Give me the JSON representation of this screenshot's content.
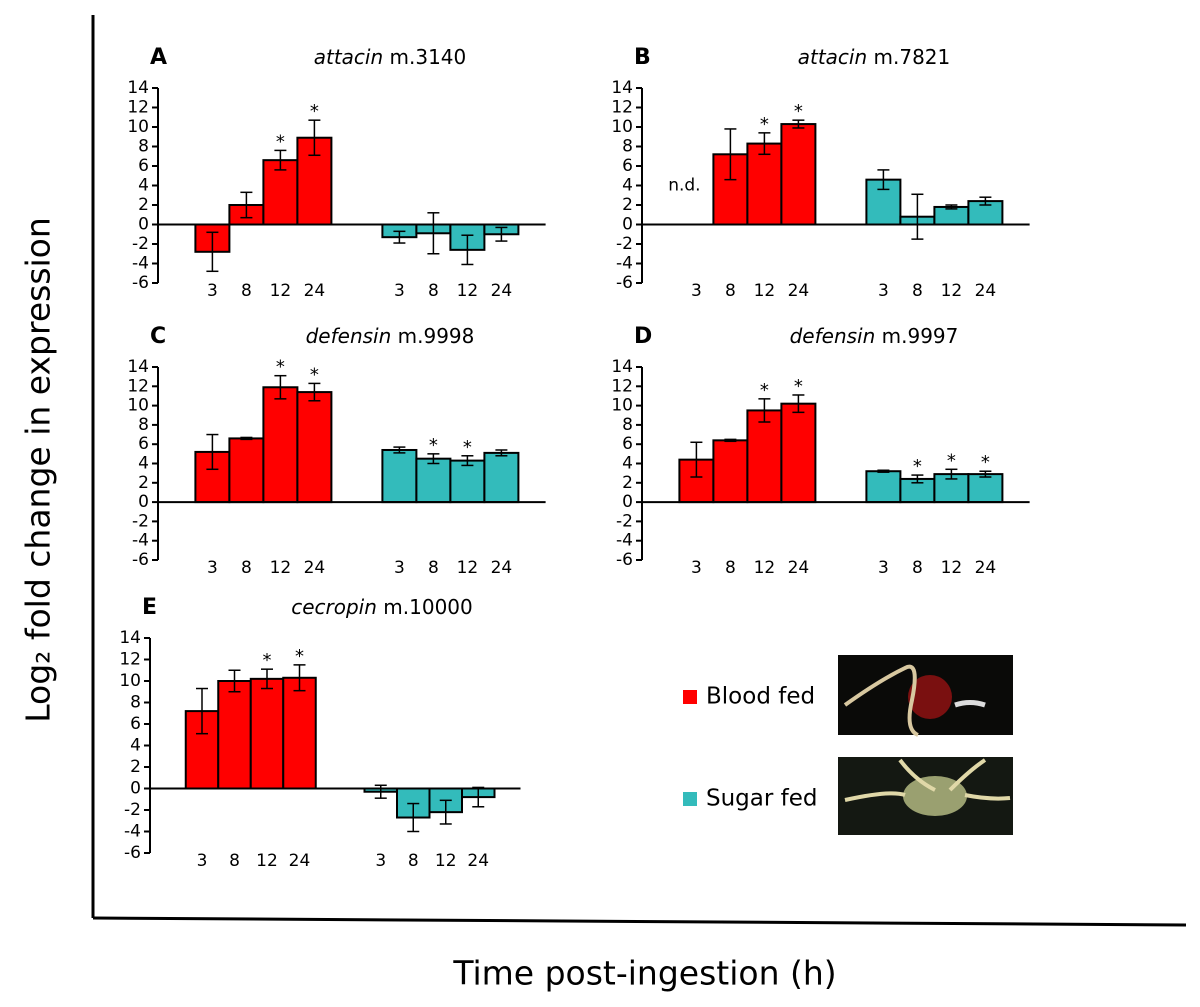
{
  "chart_data": [
    {
      "type": "bar",
      "panel": "A",
      "gene": "attacin",
      "model": "m.3140",
      "categories": [
        "3",
        "8",
        "12",
        "24"
      ],
      "ylim": [
        -6,
        14
      ],
      "yticks": [
        -6,
        -4,
        -2,
        0,
        2,
        4,
        6,
        8,
        10,
        12,
        14
      ],
      "series": [
        {
          "values": [
            -2.8,
            2.0,
            6.6,
            8.9
          ],
          "errors": [
            2.0,
            1.3,
            1.0,
            1.8
          ],
          "stars": [
            null,
            null,
            "*",
            "*"
          ]
        },
        {
          "values": [
            -1.3,
            -0.9,
            -2.6,
            -1.0
          ],
          "errors": [
            0.6,
            2.1,
            1.5,
            0.7
          ],
          "stars": [
            null,
            null,
            null,
            null
          ]
        }
      ]
    },
    {
      "type": "bar",
      "panel": "B",
      "gene": "attacin",
      "model": "m.7821",
      "categories": [
        "3",
        "8",
        "12",
        "24"
      ],
      "ylim": [
        -6,
        14
      ],
      "yticks": [
        -6,
        -4,
        -2,
        0,
        2,
        4,
        6,
        8,
        10,
        12,
        14
      ],
      "series": [
        {
          "values": [
            null,
            7.2,
            8.3,
            10.3
          ],
          "errors": [
            null,
            2.6,
            1.1,
            0.4
          ],
          "stars": [
            null,
            null,
            "*",
            "*"
          ],
          "notes": [
            "n.d.",
            null,
            null,
            null
          ]
        },
        {
          "values": [
            4.6,
            0.8,
            1.8,
            2.4
          ],
          "errors": [
            1.0,
            2.3,
            0.2,
            0.4
          ],
          "stars": [
            null,
            null,
            null,
            null
          ]
        }
      ]
    },
    {
      "type": "bar",
      "panel": "C",
      "gene": "defensin",
      "model": "m.9998",
      "categories": [
        "3",
        "8",
        "12",
        "24"
      ],
      "ylim": [
        -6,
        14
      ],
      "yticks": [
        -6,
        -4,
        -2,
        0,
        2,
        4,
        6,
        8,
        10,
        12,
        14
      ],
      "series": [
        {
          "values": [
            5.2,
            6.6,
            11.9,
            11.4
          ],
          "errors": [
            1.8,
            0.1,
            1.2,
            0.9
          ],
          "stars": [
            null,
            null,
            "*",
            "*"
          ]
        },
        {
          "values": [
            5.4,
            4.5,
            4.3,
            5.1
          ],
          "errors": [
            0.3,
            0.5,
            0.5,
            0.3
          ],
          "stars": [
            null,
            "*",
            "*",
            null
          ]
        }
      ]
    },
    {
      "type": "bar",
      "panel": "D",
      "gene": "defensin",
      "model": "m.9997",
      "categories": [
        "3",
        "8",
        "12",
        "24"
      ],
      "ylim": [
        -6,
        14
      ],
      "yticks": [
        -6,
        -4,
        -2,
        0,
        2,
        4,
        6,
        8,
        10,
        12,
        14
      ],
      "series": [
        {
          "values": [
            4.4,
            6.4,
            9.5,
            10.2
          ],
          "errors": [
            1.8,
            0.1,
            1.2,
            0.9
          ],
          "stars": [
            null,
            null,
            "*",
            "*"
          ]
        },
        {
          "values": [
            3.2,
            2.4,
            2.9,
            2.9
          ],
          "errors": [
            0.1,
            0.4,
            0.5,
            0.3
          ],
          "stars": [
            null,
            "*",
            "*",
            "*"
          ]
        }
      ]
    },
    {
      "type": "bar",
      "panel": "E",
      "gene": "cecropin",
      "model": "m.10000",
      "categories": [
        "3",
        "8",
        "12",
        "24"
      ],
      "ylim": [
        -6,
        14
      ],
      "yticks": [
        -6,
        -4,
        -2,
        0,
        2,
        4,
        6,
        8,
        10,
        12,
        14
      ],
      "series": [
        {
          "values": [
            7.2,
            10.0,
            10.2,
            10.3
          ],
          "errors": [
            2.1,
            1.0,
            0.9,
            1.2
          ],
          "stars": [
            null,
            null,
            "*",
            "*"
          ]
        },
        {
          "values": [
            -0.3,
            -2.7,
            -2.2,
            -0.8
          ],
          "errors": [
            0.6,
            1.3,
            1.1,
            0.9
          ],
          "stars": [
            null,
            null,
            null,
            null
          ]
        }
      ]
    }
  ],
  "groups": [
    {
      "name": "Blood fed",
      "color": "#ff0000"
    },
    {
      "name": "Sugar fed",
      "color": "#33bbbb"
    }
  ],
  "ylabel": "Log₂ fold change in expression",
  "xlabel": "Time post-ingestion (h)"
}
